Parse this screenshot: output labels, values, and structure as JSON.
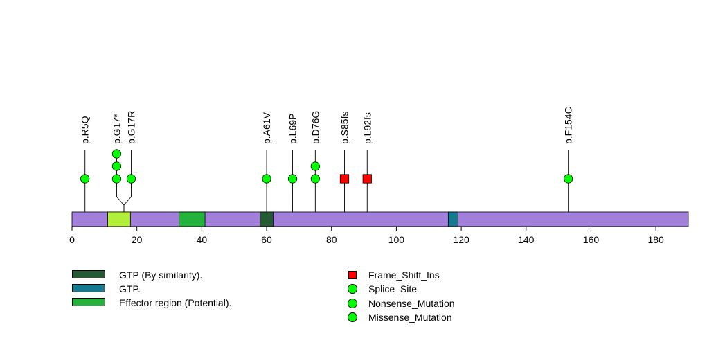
{
  "chart_data": {
    "type": "lollipop",
    "protein_length": 190,
    "backbone_color": "#a17fdb",
    "xlim": [
      0,
      190
    ],
    "xticks": [
      0,
      20,
      40,
      60,
      80,
      100,
      120,
      140,
      160,
      180
    ],
    "tick_labels": [
      "0",
      "20",
      "40",
      "60",
      "80",
      "100",
      "120",
      "140",
      "160",
      "180"
    ],
    "regions": [
      {
        "start": 11,
        "end": 18,
        "color": "#b2ef3b"
      },
      {
        "start": 33,
        "end": 41,
        "color": "#23b33c",
        "name": "Effector region (Potential)."
      },
      {
        "start": 58,
        "end": 62,
        "color": "#245a34",
        "name": "GTP (By similarity)."
      },
      {
        "start": 116,
        "end": 119,
        "color": "#17798f",
        "name": "GTP."
      }
    ],
    "mutations": [
      {
        "label": "p.R5Q",
        "pos": 4,
        "count": 1,
        "types": [
          "Missense_Mutation"
        ]
      },
      {
        "label": "p.G17*",
        "pos": 16,
        "count": 3,
        "types": [
          "Splice_Site",
          "Nonsense_Mutation",
          "Missense_Mutation"
        ]
      },
      {
        "label": "p.G17R",
        "pos": 16,
        "count": 1,
        "types": [
          "Missense_Mutation"
        ]
      },
      {
        "label": "p.A61V",
        "pos": 60,
        "count": 1,
        "types": [
          "Missense_Mutation"
        ]
      },
      {
        "label": "p.L69P",
        "pos": 68,
        "count": 1,
        "types": [
          "Missense_Mutation"
        ]
      },
      {
        "label": "p.D76G",
        "pos": 75,
        "count": 2,
        "types": [
          "Missense_Mutation",
          "Missense_Mutation"
        ]
      },
      {
        "label": "p.S85fs",
        "pos": 84,
        "count": 1,
        "types": [
          "Frame_Shift_Ins"
        ]
      },
      {
        "label": "p.L92fs",
        "pos": 91,
        "count": 1,
        "types": [
          "Frame_Shift_Ins"
        ]
      },
      {
        "label": "p.F154C",
        "pos": 153,
        "count": 1,
        "types": [
          "Missense_Mutation"
        ]
      }
    ],
    "type_colors": {
      "Frame_Shift_Ins": "#ff0000",
      "Splice_Site": "#00ff00",
      "Nonsense_Mutation": "#00ff00",
      "Missense_Mutation": "#00ff00"
    },
    "domain_legend": [
      {
        "label": "GTP (By similarity).",
        "color": "#245a34"
      },
      {
        "label": "GTP.",
        "color": "#17798f"
      },
      {
        "label": "Effector region (Potential).",
        "color": "#23b33c"
      }
    ],
    "type_legend": [
      {
        "label": "Frame_Shift_Ins",
        "shape": "square",
        "color": "#ff0000"
      },
      {
        "label": "Splice_Site",
        "shape": "circle",
        "color": "#00ff00"
      },
      {
        "label": "Nonsense_Mutation",
        "shape": "circle",
        "color": "#00ff00"
      },
      {
        "label": "Missense_Mutation",
        "shape": "circle",
        "color": "#00ff00"
      }
    ]
  }
}
